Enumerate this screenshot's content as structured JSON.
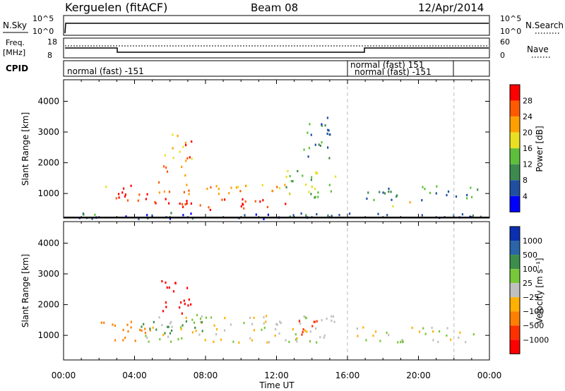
{
  "header": {
    "station": "Kerguelen (fitACF)",
    "beam": "Beam 08",
    "date": "12/Apr/2014"
  },
  "top_strip": {
    "nsky_label": "N.Sky",
    "nsearch_label": "N.Search",
    "left_ticks": [
      "10^5",
      "10^0"
    ],
    "right_ticks": [
      "10^5",
      "10^0"
    ],
    "freq_label_line1": "Freq.",
    "freq_label_line2": "[MHz]",
    "freq_ticks": [
      "18",
      "8"
    ],
    "nave_label": "Nave",
    "nave_ticks": [
      "60",
      "0"
    ],
    "cpid_label": "CPID",
    "cpid_entries": [
      {
        "text": "normal (fast) -151",
        "start": "00:00"
      },
      {
        "text": "normal (fast) 151",
        "start": "16:00"
      },
      {
        "text": "normal (fast) -151",
        "start": "17:00"
      }
    ]
  },
  "colors": {
    "power_scale": [
      "#0000ff",
      "#1f4fa0",
      "#3e8a4e",
      "#5ec03a",
      "#e8e020",
      "#ffa000",
      "#ff5a00",
      "#ff0000"
    ],
    "velocity_scale": [
      "#0a2fb0",
      "#2a65a8",
      "#3d8e4a",
      "#79c83a",
      "#c0c0c0",
      "#ffb000",
      "#ff8000",
      "#ff3000",
      "#ff0000"
    ],
    "ground_scatter": "#c0c0c0"
  },
  "chart_data": [
    {
      "type": "heatmap",
      "panel": "power",
      "x_unit": "Time UT",
      "xlabel": "Time UT",
      "ylabel": "Slant Range [km]",
      "x_ticks": [
        "00:00",
        "04:00",
        "08:00",
        "12:00",
        "16:00",
        "20:00",
        "00:00"
      ],
      "y_ticks": [
        1000,
        2000,
        3000,
        4000
      ],
      "ylim": [
        200,
        4700
      ],
      "colorbar": {
        "label": "Power [dB]",
        "ticks": [
          4,
          8,
          12,
          16,
          20,
          24,
          28
        ],
        "range": [
          0,
          32
        ]
      },
      "regions": [
        {
          "t_start": 1.2,
          "t_end": 2.0,
          "r_min": 300,
          "r_max": 450,
          "level": 8
        },
        {
          "t_start": 2.0,
          "t_end": 2.4,
          "r_min": 900,
          "r_max": 1400,
          "level": 14
        },
        {
          "t_start": 2.5,
          "t_end": 5.0,
          "r_min": 800,
          "r_max": 1300,
          "level": 28
        },
        {
          "t_start": 5.0,
          "t_end": 12.5,
          "r_min": 500,
          "r_max": 900,
          "level": 28
        },
        {
          "t_start": 5.0,
          "t_end": 12.5,
          "r_min": 1000,
          "r_max": 1400,
          "level": 22
        },
        {
          "t_start": 5.5,
          "t_end": 7.2,
          "r_min": 1600,
          "r_max": 3000,
          "level": 24
        },
        {
          "t_start": 12.5,
          "t_end": 15.5,
          "r_min": 900,
          "r_max": 1800,
          "level": 14
        },
        {
          "t_start": 13.5,
          "t_end": 15.0,
          "r_min": 2000,
          "r_max": 3500,
          "level": 8
        },
        {
          "t_start": 16.5,
          "t_end": 23.5,
          "r_min": 800,
          "r_max": 1300,
          "level": 10
        },
        {
          "t_start": 18.5,
          "t_end": 20.0,
          "r_min": 600,
          "r_max": 800,
          "level": 20
        },
        {
          "t_start": 0.0,
          "t_end": 24.0,
          "r_min": 200,
          "r_max": 400,
          "level": 6
        }
      ]
    },
    {
      "type": "heatmap",
      "panel": "velocity",
      "x_unit": "Time UT",
      "xlabel": "Time UT",
      "ylabel": "Slant Range [km]",
      "x_ticks": [
        "00:00",
        "04:00",
        "08:00",
        "12:00",
        "16:00",
        "20:00",
        "00:00"
      ],
      "y_ticks": [
        1000,
        2000,
        3000,
        4000
      ],
      "ylim": [
        200,
        4700
      ],
      "colorbar": {
        "label": "Velocity [m s⁻¹]",
        "ticks": [
          "1000",
          "500",
          "100",
          "25",
          "−25",
          "−100",
          "−500",
          "−1000"
        ]
      },
      "regions": [
        {
          "t_start": 2.0,
          "t_end": 5.0,
          "r_min": 800,
          "r_max": 1500,
          "velocity": -150
        },
        {
          "t_start": 4.5,
          "t_end": 15.5,
          "r_min": 800,
          "r_max": 1700,
          "velocity": 0
        },
        {
          "t_start": 5.5,
          "t_end": 7.2,
          "r_min": 1600,
          "r_max": 2900,
          "velocity": -800
        },
        {
          "t_start": 13.0,
          "t_end": 14.5,
          "r_min": 1000,
          "r_max": 1500,
          "velocity": -400
        },
        {
          "t_start": 16.5,
          "t_end": 23.5,
          "r_min": 800,
          "r_max": 1300,
          "velocity": 0
        },
        {
          "t_start": 4.0,
          "t_end": 8.0,
          "r_min": 1100,
          "r_max": 1500,
          "velocity": 150
        }
      ]
    }
  ]
}
